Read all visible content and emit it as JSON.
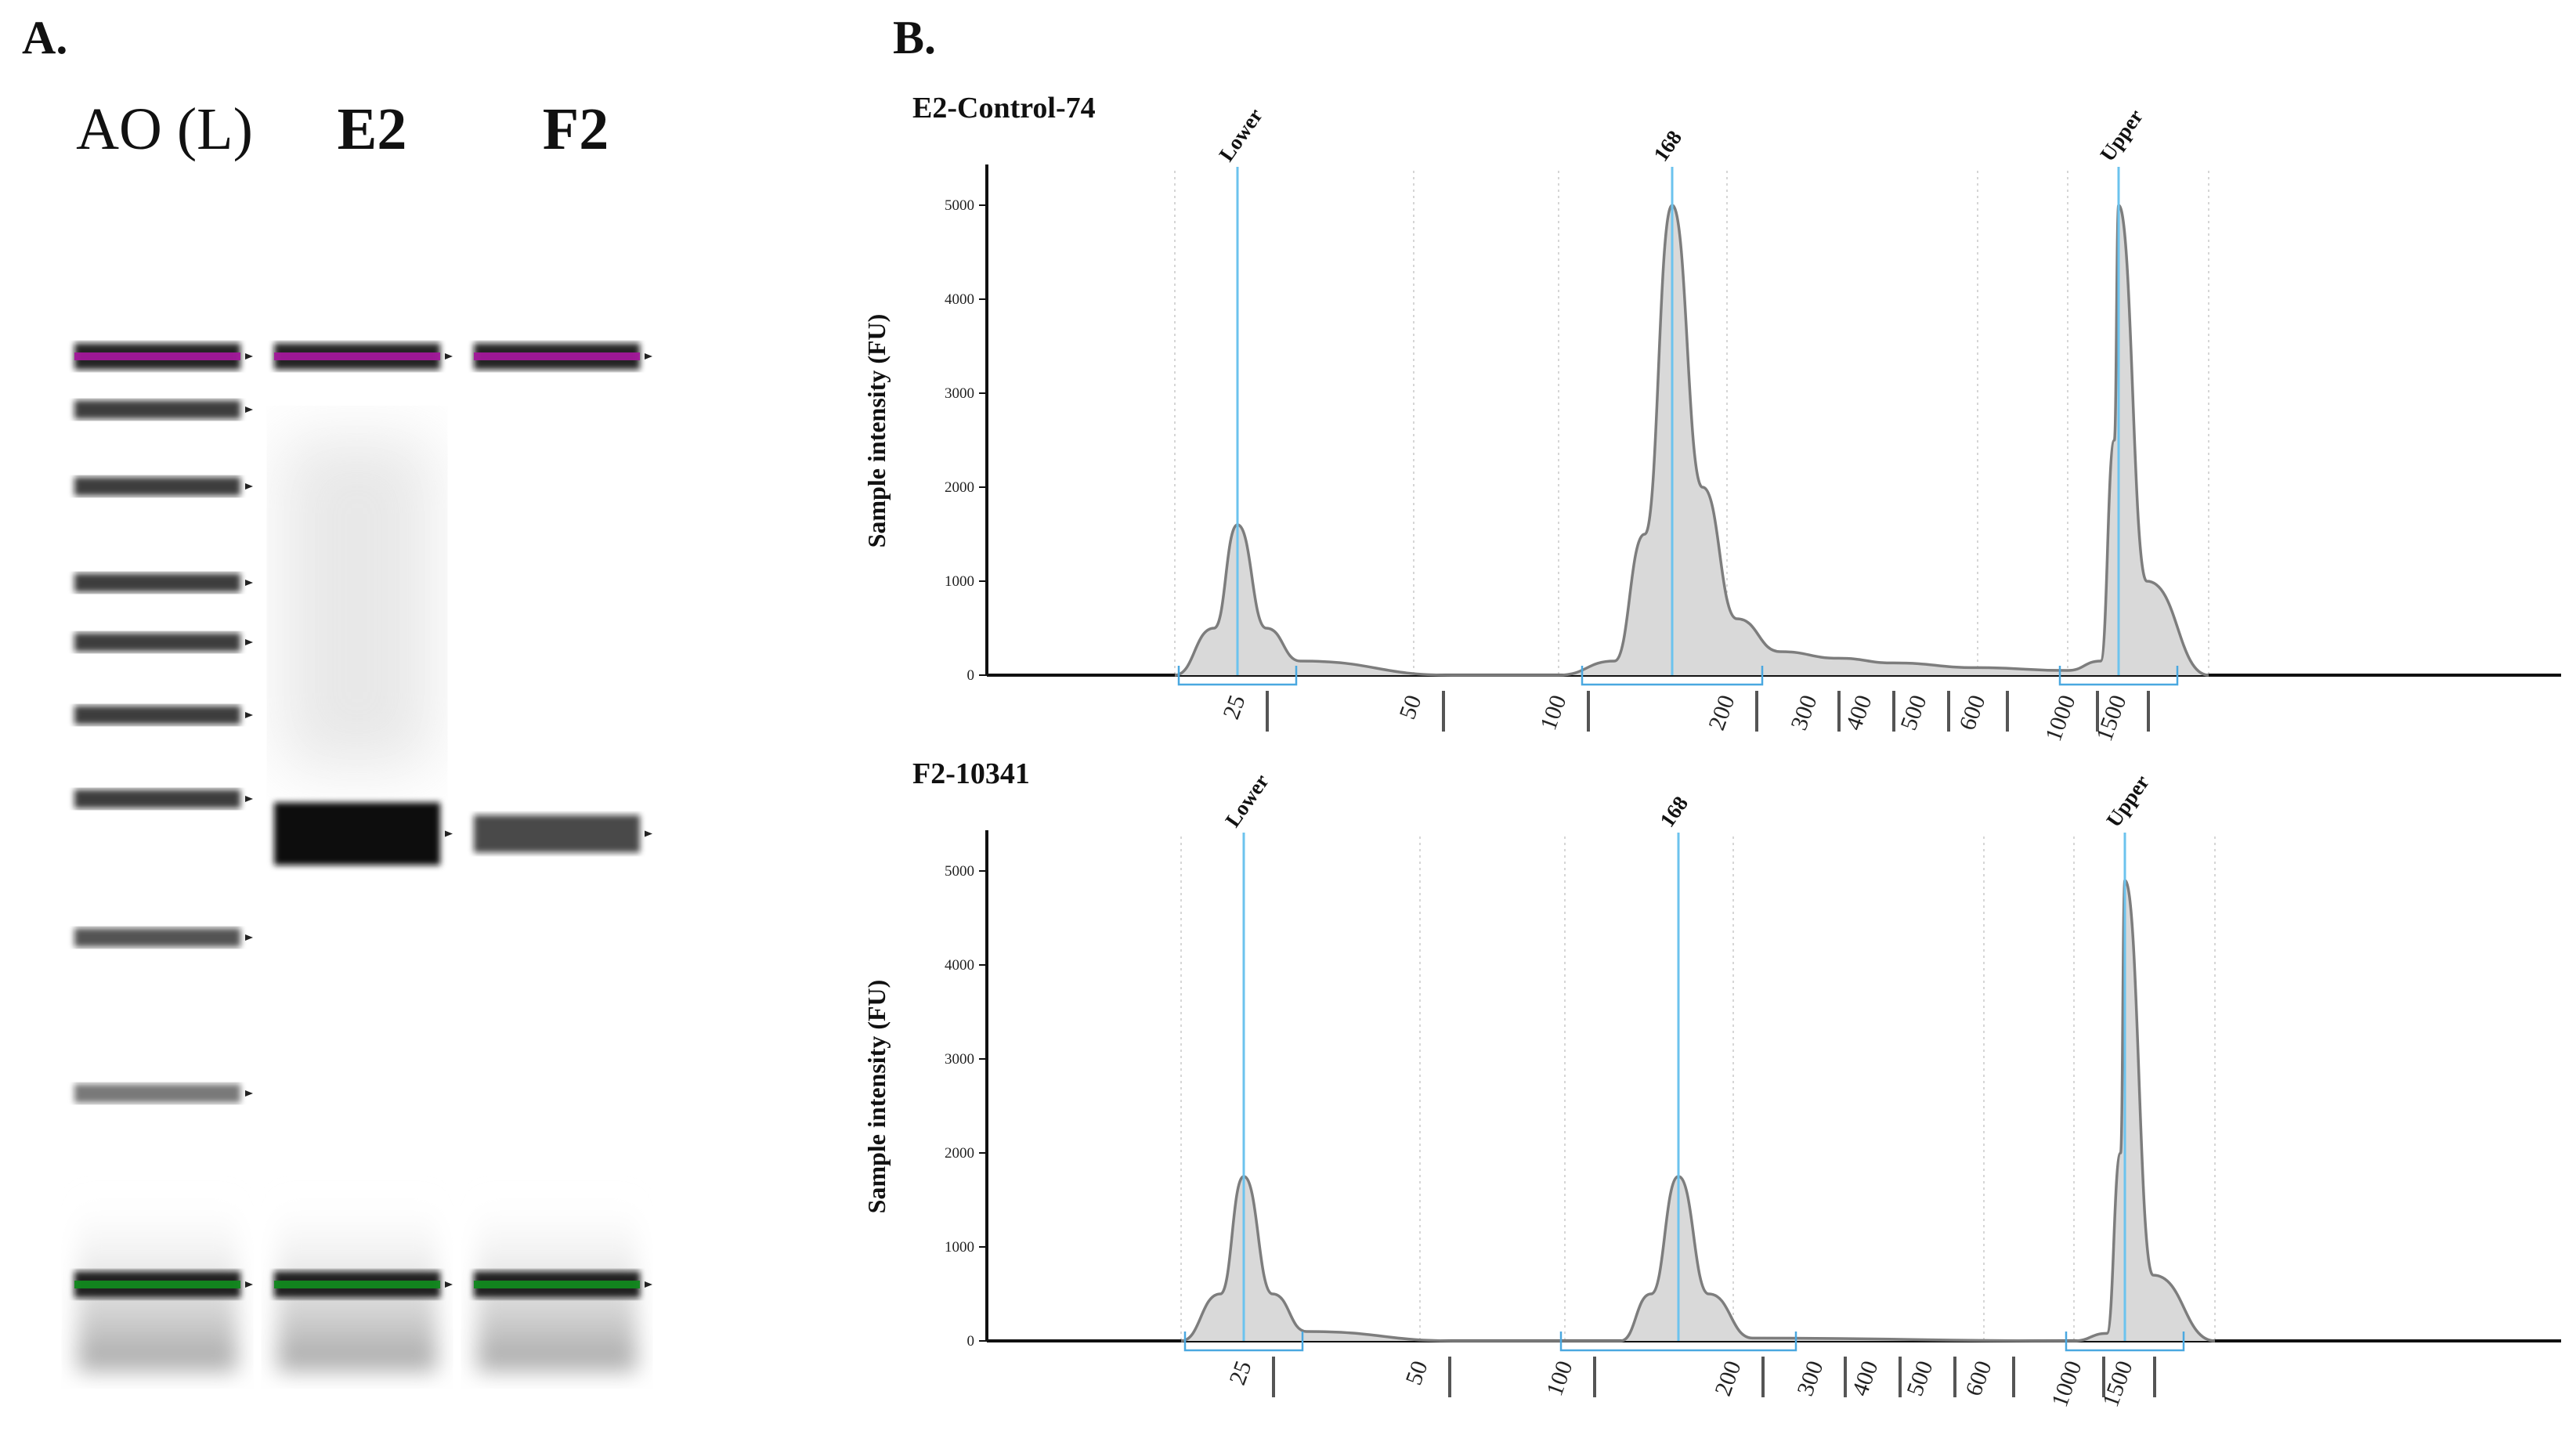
{
  "panel_a": {
    "label": "A.",
    "lanes": [
      {
        "name": "AO (L)",
        "bold": false
      },
      {
        "name": "E2",
        "bold": true
      },
      {
        "name": "F2",
        "bold": true
      }
    ],
    "ladder_bands": [
      {
        "size": 1500,
        "intensity": 0.9,
        "marker": "upper"
      },
      {
        "size": 1000,
        "intensity": 0.8
      },
      {
        "size": 600,
        "intensity": 0.8
      },
      {
        "size": 500,
        "intensity": 0.8
      },
      {
        "size": 400,
        "intensity": 0.8
      },
      {
        "size": 300,
        "intensity": 0.8
      },
      {
        "size": 200,
        "intensity": 0.8
      },
      {
        "size": 100,
        "intensity": 0.7
      },
      {
        "size": 50,
        "intensity": 0.55
      },
      {
        "size": 25,
        "intensity": 0.9,
        "marker": "lower"
      }
    ],
    "sample_bands": [
      {
        "lane": "E2",
        "size": 168,
        "intensity": 1.0
      },
      {
        "lane": "F2",
        "size": 168,
        "intensity": 0.75
      }
    ],
    "colors": {
      "upper_marker": "#a3189b",
      "lower_marker": "#12891f",
      "band": "#111111"
    }
  },
  "panel_b": {
    "label": "B.",
    "chart_data": [
      {
        "type": "line",
        "title": "E2-Control-74",
        "xlabel": "",
        "ylabel": "Sample intensity (FU)",
        "ylim": [
          0,
          5200
        ],
        "y_ticks": [
          "0",
          "1000",
          "2000",
          "3000",
          "4000",
          "5000"
        ],
        "x_ticks": [
          "25",
          "50",
          "100",
          "200",
          "300",
          "400",
          "500",
          "600",
          "1000",
          "1500"
        ],
        "x_scale": "log (bp)",
        "markers": [
          "Lower",
          "168",
          "Upper"
        ],
        "series": [
          {
            "name": "E2-Control-74",
            "x": [
              20,
              23,
              25,
              28,
              32,
              60,
              100,
              130,
              150,
              168,
              185,
              210,
              260,
              350,
              450,
              600,
              1000,
              1300,
              1450,
              1500,
              1560,
              1700
            ],
            "values": [
              0,
              500,
              1600,
              500,
              150,
              0,
              0,
              150,
              1500,
              5000,
              2000,
              600,
              250,
              180,
              130,
              80,
              50,
              150,
              2500,
              5000,
              1000,
              0
            ]
          }
        ],
        "peaks": [
          {
            "label": "Lower",
            "x": 25,
            "value": 1600
          },
          {
            "label": "168",
            "x": 168,
            "value": 5000
          },
          {
            "label": "Upper",
            "x": 1500,
            "value": 5000
          }
        ]
      },
      {
        "type": "line",
        "title": "F2-10341",
        "xlabel": "",
        "ylabel": "Sample intensity (FU)",
        "ylim": [
          0,
          5200
        ],
        "y_ticks": [
          "0",
          "1000",
          "2000",
          "3000",
          "4000",
          "5000"
        ],
        "x_ticks": [
          "25",
          "50",
          "100",
          "200",
          "300",
          "400",
          "500",
          "600",
          "1000",
          "1500"
        ],
        "x_scale": "log (bp)",
        "markers": [
          "Lower",
          "168",
          "Upper"
        ],
        "series": [
          {
            "name": "F2-10341",
            "x": [
              20,
              23,
              25,
              28,
              32,
              60,
              130,
              150,
              168,
              185,
              220,
              1000,
              1300,
              1450,
              1500,
              1560,
              1700
            ],
            "values": [
              0,
              500,
              1750,
              500,
              100,
              0,
              0,
              500,
              1750,
              500,
              30,
              0,
              80,
              2000,
              4900,
              700,
              0
            ]
          }
        ],
        "peaks": [
          {
            "label": "Lower",
            "x": 25,
            "value": 1750
          },
          {
            "label": "168",
            "x": 168,
            "value": 1750
          },
          {
            "label": "Upper",
            "x": 1500,
            "value": 4900
          }
        ]
      }
    ],
    "colors": {
      "fill": "#d9d9d9",
      "curve": "#7d7d7d",
      "marker_line": "#6cc3ee",
      "bracket": "#4aa8e0",
      "grid": "#c8c8c8"
    }
  }
}
